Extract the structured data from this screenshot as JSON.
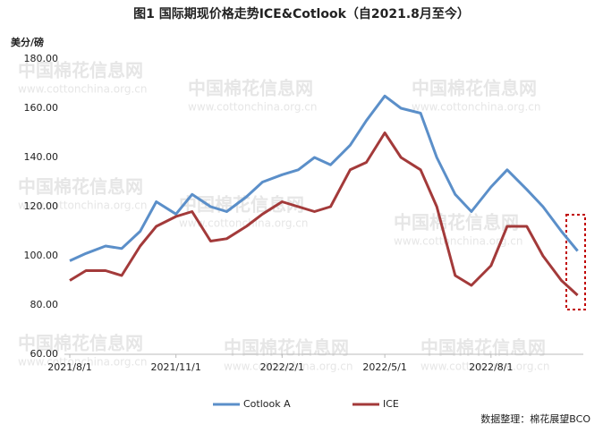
{
  "chart_data": {
    "type": "line",
    "title": "图1  国际期现价格走势ICE&Cotlook（自2021.8月至今）",
    "y_label": "美分/磅",
    "source": "数据整理：棉花展望BCO",
    "watermark": [
      "中国棉花信息网",
      "www.cottonchina.org.cn"
    ],
    "x": [
      "2021/8/1",
      "2021/8/15",
      "2021/9/1",
      "2021/9/15",
      "2021/10/1",
      "2021/10/15",
      "2021/11/1",
      "2021/11/15",
      "2021/12/1",
      "2021/12/15",
      "2022/1/1",
      "2022/1/15",
      "2022/2/1",
      "2022/2/15",
      "2022/3/1",
      "2022/3/15",
      "2022/4/1",
      "2022/4/15",
      "2022/5/1",
      "2022/5/15",
      "2022/6/1",
      "2022/6/15",
      "2022/7/1",
      "2022/7/15",
      "2022/8/1",
      "2022/8/15",
      "2022/9/1",
      "2022/9/15",
      "2022/10/1",
      "2022/10/15"
    ],
    "series": [
      {
        "name": "Cotlook A",
        "color": "#5b8fc9",
        "values": [
          98,
          101,
          104,
          103,
          110,
          122,
          117,
          125,
          120,
          118,
          124,
          130,
          133,
          135,
          140,
          137,
          145,
          155,
          165,
          160,
          158,
          140,
          125,
          118,
          128,
          135,
          127,
          120,
          110,
          102
        ]
      },
      {
        "name": "ICE",
        "color": "#a33a3a",
        "values": [
          90,
          94,
          94,
          92,
          104,
          112,
          116,
          118,
          106,
          107,
          112,
          117,
          122,
          120,
          118,
          120,
          135,
          138,
          150,
          140,
          135,
          120,
          92,
          88,
          96,
          112,
          112,
          100,
          90,
          84
        ]
      }
    ],
    "xlim": [
      "2021/8/1",
      "2022/10/20"
    ],
    "xticks": [
      "2021/8/1",
      "2021/11/1",
      "2022/2/1",
      "2022/5/1",
      "2022/8/1"
    ],
    "ylim": [
      60,
      180
    ],
    "yticks": [
      {
        "value": 60,
        "label": "60.00"
      },
      {
        "value": 80,
        "label": "80.00"
      },
      {
        "value": 100,
        "label": "100.00"
      },
      {
        "value": 120,
        "label": "120.00"
      },
      {
        "value": 140,
        "label": "140.00"
      },
      {
        "value": 160,
        "label": "160.00"
      },
      {
        "value": 180,
        "label": "180.00"
      }
    ],
    "grid": false
  }
}
